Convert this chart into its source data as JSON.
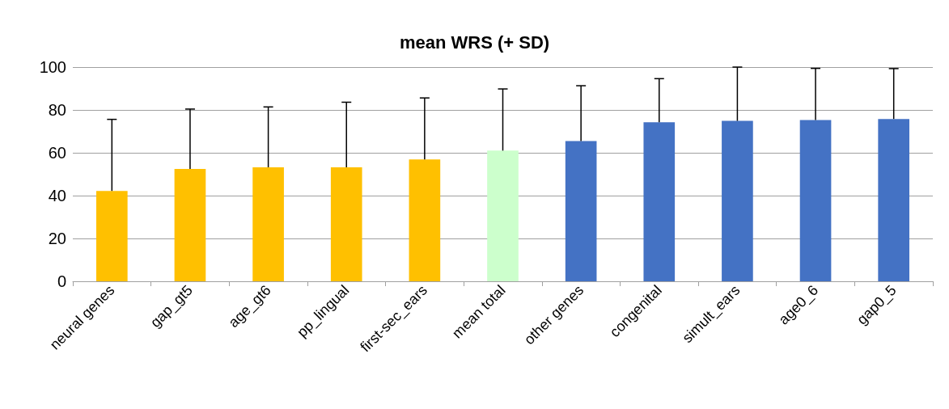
{
  "chart_data": {
    "type": "bar",
    "title": "mean WRS (+ SD)",
    "categories": [
      "neural genes",
      "gap_gt5",
      "age_gt6",
      "pp_lingual",
      "first-sec_ears",
      "mean total",
      "other genes",
      "congenital",
      "simult_ears",
      "age0_6",
      "gap0_5"
    ],
    "values": [
      42.2,
      52.5,
      53.2,
      53.2,
      56.9,
      61.0,
      65.5,
      74.2,
      74.9,
      75.3,
      75.8
    ],
    "colors": [
      "#ffc000",
      "#ffc000",
      "#ffc000",
      "#ffc000",
      "#ffc000",
      "#ccffcc",
      "#4472c4",
      "#4472c4",
      "#4472c4",
      "#4472c4",
      "#4472c4"
    ],
    "errors": [
      [
        42.2,
        75.6
      ],
      [
        52.5,
        80.4
      ],
      [
        53.2,
        81.4
      ],
      [
        53.2,
        83.6
      ],
      [
        56.9,
        85.6
      ],
      [
        61.0,
        89.8
      ],
      [
        65.5,
        91.3
      ],
      [
        74.2,
        94.6
      ],
      [
        74.9,
        100
      ],
      [
        75.3,
        99.4
      ],
      [
        75.8,
        99.3
      ]
    ],
    "ylim": [
      0,
      100
    ],
    "yticks": [
      0,
      20,
      40,
      60,
      80,
      100
    ],
    "grid": "y"
  }
}
